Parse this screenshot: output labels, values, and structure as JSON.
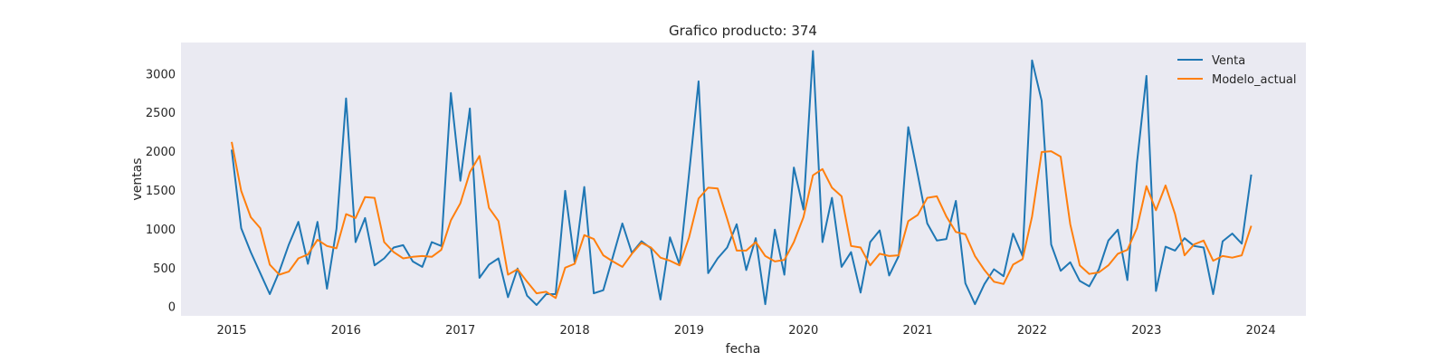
{
  "chart_data": {
    "type": "line",
    "title": "Grafico producto: 374",
    "xlabel": "fecha",
    "ylabel": "ventas",
    "x_start": "2015-01",
    "x_frequency": "monthly",
    "x_ticks": [
      "2015",
      "2016",
      "2017",
      "2018",
      "2019",
      "2020",
      "2021",
      "2022",
      "2023",
      "2024"
    ],
    "y_ticks": [
      0,
      500,
      1000,
      1500,
      2000,
      2500,
      3000
    ],
    "ylim": [
      -120,
      3400
    ],
    "grid": false,
    "legend_position": "top-right",
    "background": "#eaeaf2",
    "series": [
      {
        "name": "Venta",
        "color": "#1f77b4",
        "values": [
          2020,
          1010,
          700,
          430,
          160,
          450,
          800,
          1090,
          550,
          1090,
          230,
          1000,
          2680,
          830,
          1140,
          530,
          620,
          760,
          790,
          580,
          510,
          830,
          780,
          2750,
          1620,
          2550,
          370,
          540,
          620,
          120,
          490,
          140,
          20,
          160,
          160,
          1490,
          570,
          1540,
          170,
          210,
          640,
          1070,
          690,
          840,
          750,
          90,
          890,
          540,
          1710,
          2900,
          430,
          620,
          760,
          1060,
          470,
          880,
          30,
          990,
          410,
          1790,
          1250,
          3290,
          830,
          1400,
          510,
          700,
          180,
          830,
          980,
          400,
          650,
          2310,
          1700,
          1070,
          850,
          870,
          1360,
          300,
          30,
          290,
          480,
          390,
          940,
          650,
          3170,
          2650,
          800,
          460,
          570,
          330,
          260,
          480,
          850,
          990,
          340,
          1850,
          2970,
          200,
          770,
          720,
          880,
          780,
          760,
          160,
          840,
          940,
          810,
          1700
        ]
      },
      {
        "name": "Modelo_actual",
        "color": "#ff7f0e",
        "values": [
          2120,
          1490,
          1150,
          1010,
          540,
          410,
          450,
          620,
          670,
          860,
          780,
          750,
          1190,
          1140,
          1410,
          1400,
          830,
          700,
          620,
          640,
          650,
          640,
          730,
          1110,
          1330,
          1730,
          1940,
          1270,
          1100,
          410,
          480,
          320,
          170,
          190,
          110,
          500,
          550,
          920,
          870,
          660,
          580,
          510,
          680,
          820,
          760,
          630,
          590,
          530,
          890,
          1390,
          1530,
          1520,
          1130,
          720,
          720,
          830,
          650,
          580,
          600,
          830,
          1150,
          1690,
          1770,
          1530,
          1420,
          780,
          760,
          530,
          680,
          650,
          660,
          1100,
          1180,
          1400,
          1420,
          1160,
          960,
          930,
          650,
          470,
          320,
          290,
          540,
          610,
          1160,
          1990,
          2000,
          1930,
          1060,
          530,
          420,
          440,
          530,
          680,
          730,
          1010,
          1550,
          1240,
          1560,
          1190,
          660,
          800,
          850,
          590,
          650,
          630,
          660,
          1040
        ]
      }
    ]
  }
}
